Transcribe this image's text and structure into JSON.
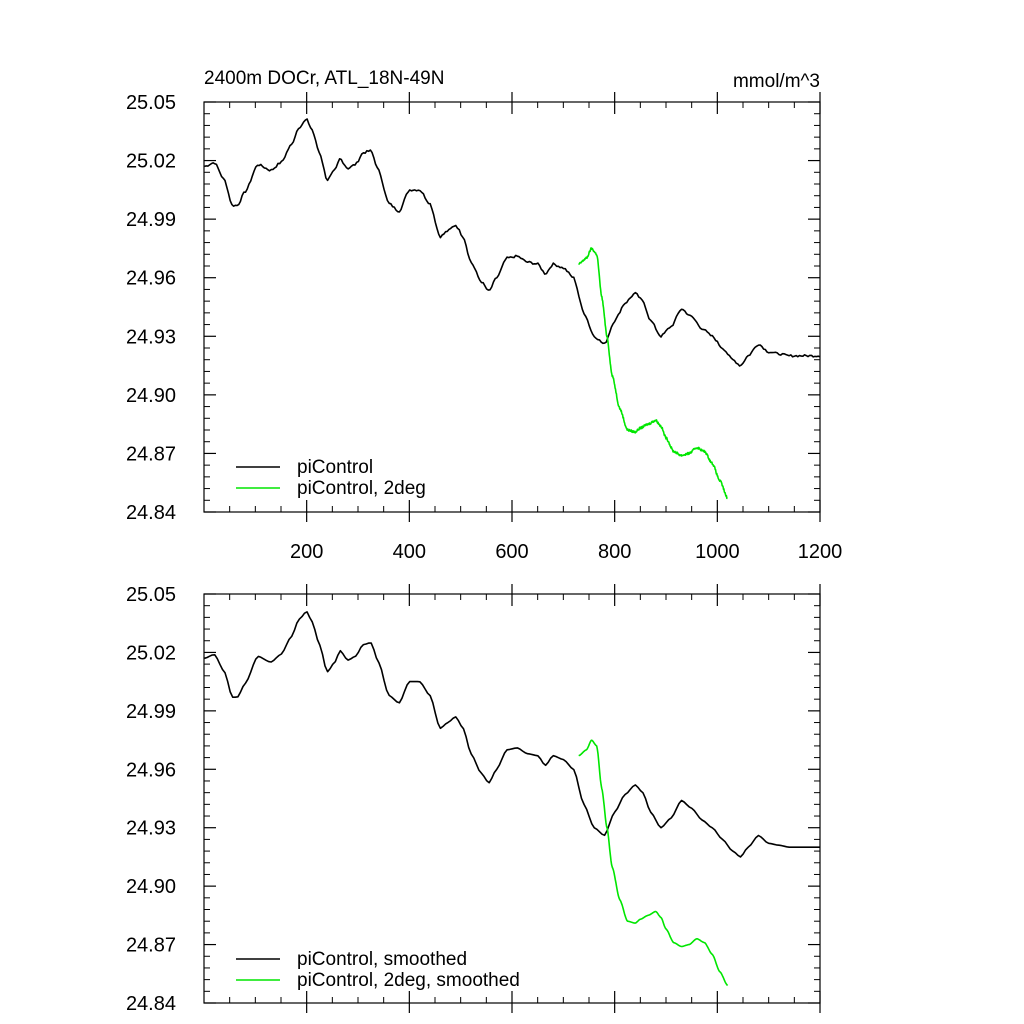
{
  "figure": {
    "left_title": "2400m DOCr, ATL_18N-49N",
    "right_title": "mmol/m^3"
  },
  "chart_data": [
    {
      "type": "line",
      "xlim": [
        0,
        1200
      ],
      "ylim": [
        24.84,
        25.05
      ],
      "xticks": [
        200,
        400,
        600,
        800,
        1000,
        1200
      ],
      "xtick_labels": [
        "200",
        "400",
        "600",
        "800",
        "1000",
        "1200"
      ],
      "yticks": [
        24.84,
        24.87,
        24.9,
        24.93,
        24.96,
        24.99,
        25.02,
        25.05
      ],
      "ytick_labels": [
        "24.84",
        "24.87",
        "24.90",
        "24.93",
        "24.96",
        "24.99",
        "25.02",
        "25.05"
      ],
      "grid": false,
      "legend_position": "bottom-left",
      "series": [
        {
          "name": "piControl",
          "color": "#000000",
          "noisy": true,
          "x": [
            1,
            20,
            40,
            55,
            65,
            80,
            105,
            130,
            150,
            170,
            185,
            200,
            210,
            225,
            240,
            255,
            265,
            280,
            295,
            310,
            325,
            340,
            360,
            380,
            400,
            420,
            440,
            460,
            475,
            490,
            505,
            520,
            540,
            555,
            570,
            590,
            610,
            630,
            650,
            665,
            680,
            700,
            720,
            740,
            760,
            780,
            800,
            820,
            840,
            855,
            870,
            890,
            910,
            930,
            950,
            970,
            990,
            1010,
            1030,
            1045,
            1060,
            1080,
            1100,
            1120,
            1140,
            1155,
            1165,
            1175,
            1190,
            1200
          ],
          "y": [
            25.017,
            25.019,
            25.01,
            24.997,
            24.997,
            25.004,
            25.018,
            25.015,
            25.019,
            25.028,
            25.037,
            25.041,
            25.036,
            25.024,
            25.01,
            25.015,
            25.021,
            25.016,
            25.018,
            25.024,
            25.025,
            25.015,
            24.998,
            24.994,
            25.005,
            25.005,
            24.998,
            24.981,
            24.984,
            24.987,
            24.981,
            24.968,
            24.958,
            24.953,
            24.96,
            24.97,
            24.971,
            24.968,
            24.967,
            24.962,
            24.967,
            24.965,
            24.96,
            24.942,
            24.93,
            24.926,
            24.938,
            24.947,
            24.952,
            24.948,
            24.938,
            24.93,
            24.935,
            24.944,
            24.94,
            24.934,
            24.93,
            24.924,
            24.918,
            24.915,
            24.92,
            24.926,
            24.922,
            24.921,
            24.92,
            24.92,
            24.92,
            24.92,
            24.92,
            24.92
          ]
        },
        {
          "name": "piControl, 2deg",
          "color": "#00e600",
          "noisy": true,
          "x": [
            730,
            745,
            755,
            765,
            775,
            785,
            795,
            810,
            825,
            840,
            850,
            865,
            880,
            890,
            900,
            915,
            930,
            945,
            960,
            975,
            990,
            1005,
            1020
          ],
          "y": [
            24.967,
            24.97,
            24.975,
            24.972,
            24.95,
            24.93,
            24.91,
            24.893,
            24.882,
            24.881,
            24.883,
            24.885,
            24.887,
            24.884,
            24.878,
            24.871,
            24.869,
            24.87,
            24.873,
            24.871,
            24.865,
            24.856,
            24.847
          ]
        }
      ]
    },
    {
      "type": "line",
      "xlim": [
        0,
        1200
      ],
      "ylim": [
        24.84,
        25.05
      ],
      "xticks": [
        200,
        400,
        600,
        800,
        1000,
        1200
      ],
      "xtick_labels": [],
      "yticks": [
        24.84,
        24.87,
        24.9,
        24.93,
        24.96,
        24.99,
        25.02,
        25.05
      ],
      "ytick_labels": [
        "24.84",
        "24.87",
        "24.90",
        "24.93",
        "24.96",
        "24.99",
        "25.02",
        "25.05"
      ],
      "grid": false,
      "legend_position": "bottom-left",
      "series": [
        {
          "name": "piControl, smoothed",
          "color": "#000000",
          "noisy": false,
          "x": [
            1,
            20,
            40,
            55,
            65,
            80,
            105,
            130,
            150,
            170,
            185,
            200,
            210,
            225,
            240,
            255,
            265,
            280,
            295,
            310,
            325,
            340,
            360,
            380,
            400,
            420,
            440,
            460,
            475,
            490,
            505,
            520,
            540,
            555,
            570,
            590,
            610,
            630,
            650,
            665,
            680,
            700,
            720,
            740,
            760,
            780,
            800,
            820,
            840,
            855,
            870,
            890,
            910,
            930,
            950,
            970,
            990,
            1010,
            1030,
            1045,
            1060,
            1080,
            1100,
            1120,
            1140,
            1155,
            1165,
            1175,
            1190,
            1200
          ],
          "y": [
            25.017,
            25.019,
            25.01,
            24.997,
            24.997,
            25.004,
            25.018,
            25.015,
            25.019,
            25.028,
            25.037,
            25.041,
            25.036,
            25.024,
            25.01,
            25.015,
            25.021,
            25.016,
            25.018,
            25.024,
            25.025,
            25.015,
            24.998,
            24.994,
            25.005,
            25.005,
            24.998,
            24.981,
            24.984,
            24.987,
            24.981,
            24.968,
            24.958,
            24.953,
            24.96,
            24.97,
            24.971,
            24.968,
            24.967,
            24.962,
            24.967,
            24.965,
            24.96,
            24.942,
            24.93,
            24.926,
            24.938,
            24.947,
            24.952,
            24.948,
            24.938,
            24.93,
            24.935,
            24.944,
            24.94,
            24.934,
            24.93,
            24.924,
            24.918,
            24.915,
            24.92,
            24.926,
            24.922,
            24.921,
            24.92,
            24.92,
            24.92,
            24.92,
            24.92,
            24.92
          ]
        },
        {
          "name": "piControl, 2deg, smoothed",
          "color": "#00e600",
          "noisy": false,
          "x": [
            730,
            745,
            755,
            765,
            775,
            785,
            795,
            810,
            825,
            840,
            850,
            865,
            880,
            890,
            900,
            915,
            930,
            945,
            960,
            975,
            990,
            1005,
            1020
          ],
          "y": [
            24.967,
            24.97,
            24.975,
            24.972,
            24.95,
            24.93,
            24.91,
            24.893,
            24.882,
            24.881,
            24.883,
            24.885,
            24.887,
            24.884,
            24.878,
            24.871,
            24.869,
            24.87,
            24.873,
            24.871,
            24.865,
            24.856,
            24.849
          ]
        }
      ]
    }
  ]
}
